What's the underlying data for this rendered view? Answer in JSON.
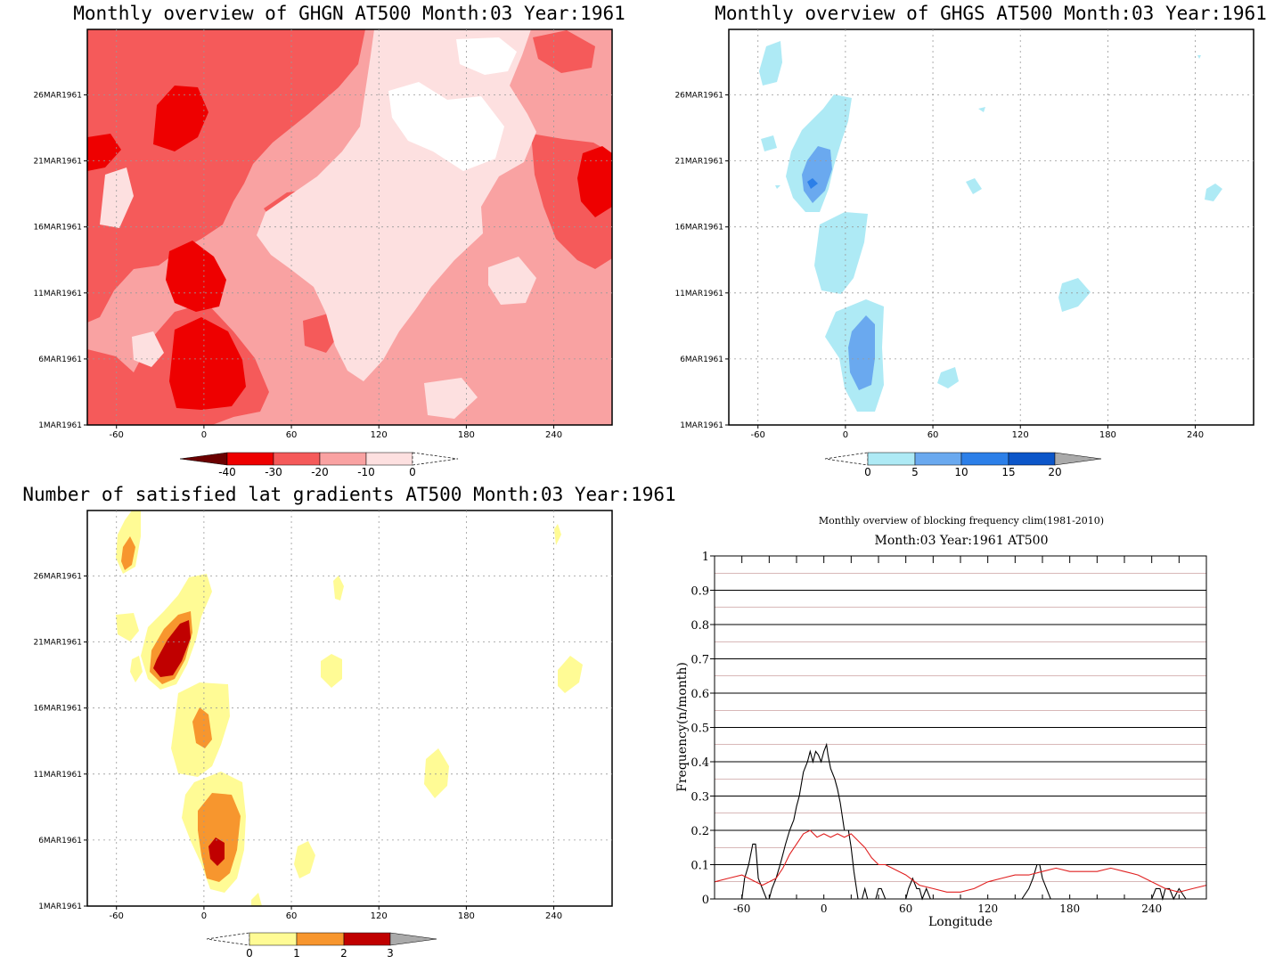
{
  "chart_data": [
    {
      "type": "heatmap",
      "title": "Monthly overview of GHGN AT500 Month:03 Year:1961",
      "xlabel": "",
      "ylabel": "",
      "x_ticks": [
        -60,
        0,
        60,
        120,
        180,
        240
      ],
      "y_ticks": [
        "1MAR1961",
        "6MAR1961",
        "11MAR1961",
        "16MAR1961",
        "21MAR1961",
        "26MAR1961"
      ],
      "xlim": [
        -80,
        280
      ],
      "colorbar": {
        "levels": [
          -40,
          -30,
          -20,
          -10,
          0
        ],
        "colors": [
          "#6b0000",
          "#ee0000",
          "#f55a5a",
          "#f9a2a2",
          "#fde0e0",
          "#ffffff"
        ]
      }
    },
    {
      "type": "heatmap",
      "title": "Monthly overview of GHGS AT500 Month:03 Year:1961",
      "xlabel": "",
      "ylabel": "",
      "x_ticks": [
        -60,
        0,
        60,
        120,
        180,
        240
      ],
      "y_ticks": [
        "1MAR1961",
        "6MAR1961",
        "11MAR1961",
        "16MAR1961",
        "21MAR1961",
        "26MAR1961"
      ],
      "xlim": [
        -80,
        280
      ],
      "colorbar": {
        "levels": [
          0,
          5,
          10,
          15,
          20
        ],
        "colors": [
          "#ffffff",
          "#aeeaf5",
          "#6aa9ef",
          "#2c7fe8",
          "#0c56c9",
          "#aaaaaa"
        ]
      }
    },
    {
      "type": "heatmap",
      "title": "Number of satisfied lat gradients AT500 Month:03 Year:1961",
      "xlabel": "",
      "ylabel": "",
      "x_ticks": [
        -60,
        0,
        60,
        120,
        180,
        240
      ],
      "y_ticks": [
        "1MAR1961",
        "6MAR1961",
        "11MAR1961",
        "16MAR1961",
        "21MAR1961",
        "26MAR1961"
      ],
      "xlim": [
        -80,
        280
      ],
      "colorbar": {
        "levels": [
          0,
          1,
          2,
          3
        ],
        "colors": [
          "#ffffff",
          "#fffb95",
          "#f7962e",
          "#c00000",
          "#aaaaaa"
        ]
      }
    },
    {
      "type": "line",
      "title": "Monthly overview of blocking frequency clim(1981-2010)",
      "subtitle": "Month:03 Year:1961  AT500",
      "xlabel": "Longitude",
      "ylabel": "Frequency(n/month)",
      "xlim": [
        -80,
        280
      ],
      "ylim": [
        0,
        1
      ],
      "x_ticks": [
        -60,
        0,
        60,
        120,
        180,
        240
      ],
      "y_ticks": [
        "0",
        "0.1",
        "0.2",
        "0.3",
        "0.4",
        "0.5",
        "0.6",
        "0.7",
        "0.8",
        "0.9",
        "1"
      ],
      "grid": true,
      "series": [
        {
          "color": "#000000",
          "x": [
            -80,
            -60,
            -58,
            -55,
            -52,
            -50,
            -48,
            -45,
            -42,
            -40,
            -38,
            -35,
            -32,
            -30,
            -28,
            -25,
            -22,
            -20,
            -18,
            -15,
            -12,
            -10,
            -8,
            -6,
            -4,
            -2,
            0,
            2,
            3,
            5,
            8,
            10,
            12,
            15,
            18,
            20,
            22,
            25,
            28,
            30,
            32,
            35,
            38,
            40,
            42,
            45,
            50,
            55,
            60,
            62,
            65,
            68,
            70,
            72,
            75,
            78,
            80,
            85,
            90,
            100,
            110,
            120,
            130,
            140,
            145,
            150,
            153,
            156,
            158,
            160,
            163,
            166,
            170,
            175,
            180,
            190,
            200,
            210,
            220,
            230,
            240,
            243,
            246,
            248,
            250,
            253,
            256,
            260,
            265,
            270,
            280
          ],
          "y": [
            0,
            0,
            0.06,
            0.1,
            0.16,
            0.16,
            0.06,
            0.03,
            0,
            0,
            0.03,
            0.06,
            0.1,
            0.13,
            0.16,
            0.2,
            0.23,
            0.27,
            0.3,
            0.37,
            0.4,
            0.43,
            0.4,
            0.43,
            0.42,
            0.4,
            0.43,
            0.45,
            0.42,
            0.38,
            0.35,
            0.32,
            0.28,
            0.2,
            0.2,
            0.15,
            0.08,
            0,
            0,
            0.03,
            0,
            0,
            0,
            0.03,
            0.03,
            0,
            0,
            0,
            0,
            0.03,
            0.06,
            0.03,
            0.03,
            0,
            0.03,
            0,
            0,
            0,
            0,
            0,
            0,
            0,
            0,
            0,
            0,
            0.03,
            0.06,
            0.1,
            0.1,
            0.06,
            0.03,
            0,
            0,
            0,
            0,
            0,
            0,
            0,
            0,
            0,
            0,
            0.03,
            0.03,
            0,
            0.03,
            0.03,
            0,
            0.03,
            0,
            0,
            0
          ]
        },
        {
          "color": "#e02020",
          "x": [
            -80,
            -70,
            -60,
            -55,
            -50,
            -45,
            -40,
            -35,
            -30,
            -25,
            -20,
            -15,
            -10,
            -5,
            0,
            5,
            10,
            15,
            20,
            25,
            30,
            35,
            40,
            45,
            50,
            55,
            60,
            70,
            80,
            90,
            100,
            110,
            120,
            130,
            140,
            150,
            160,
            170,
            180,
            190,
            200,
            210,
            220,
            230,
            240,
            250,
            260,
            270,
            280
          ],
          "y": [
            0.05,
            0.06,
            0.07,
            0.06,
            0.05,
            0.04,
            0.05,
            0.06,
            0.09,
            0.13,
            0.16,
            0.19,
            0.2,
            0.18,
            0.19,
            0.18,
            0.19,
            0.18,
            0.19,
            0.17,
            0.15,
            0.12,
            0.1,
            0.1,
            0.09,
            0.08,
            0.07,
            0.04,
            0.03,
            0.02,
            0.02,
            0.03,
            0.05,
            0.06,
            0.07,
            0.07,
            0.08,
            0.09,
            0.08,
            0.08,
            0.08,
            0.09,
            0.08,
            0.07,
            0.05,
            0.03,
            0.02,
            0.03,
            0.04
          ]
        }
      ]
    }
  ]
}
